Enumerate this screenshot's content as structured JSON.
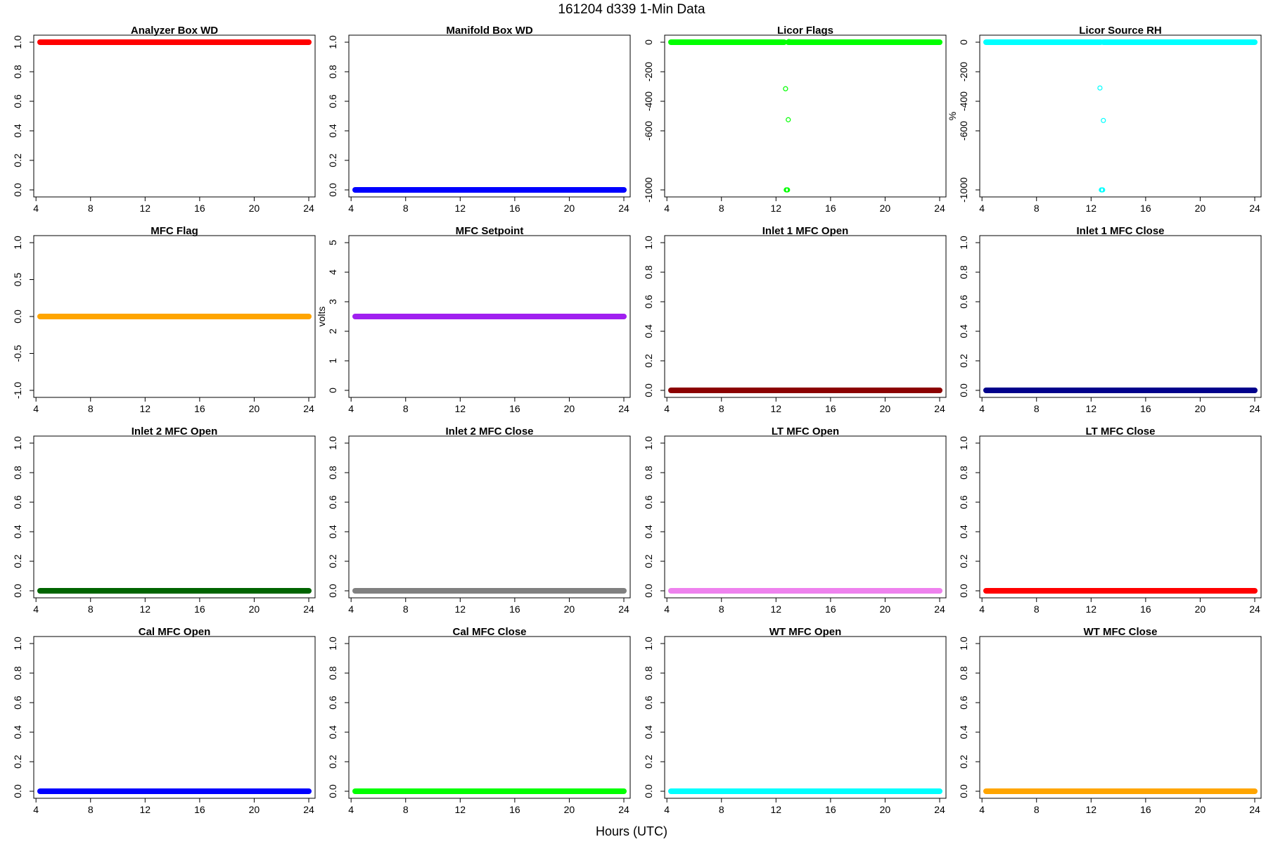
{
  "figure": {
    "title": "161204   d339   1-Min Data",
    "xlabel": "Hours (UTC)"
  },
  "chart_data": [
    {
      "type": "scatter",
      "title": "Analyzer Box WD",
      "ylabel": "",
      "color": "#ff0000",
      "xlim": [
        4.3,
        24
      ],
      "ylim": [
        0,
        1
      ],
      "xticks": [
        4,
        8,
        12,
        16,
        20,
        24
      ],
      "yticks": [
        0.0,
        0.2,
        0.4,
        0.6,
        0.8,
        1.0
      ],
      "series": [
        {
          "x": [
            4.3,
            24
          ],
          "y": [
            1,
            1
          ],
          "style": "line"
        }
      ],
      "points": []
    },
    {
      "type": "scatter",
      "title": "Manifold Box WD",
      "ylabel": "",
      "color": "#0000ff",
      "xlim": [
        4.3,
        24
      ],
      "ylim": [
        0,
        1
      ],
      "xticks": [
        4,
        8,
        12,
        16,
        20,
        24
      ],
      "yticks": [
        0.0,
        0.2,
        0.4,
        0.6,
        0.8,
        1.0
      ],
      "series": [
        {
          "x": [
            4.3,
            24
          ],
          "y": [
            0,
            0
          ],
          "style": "line"
        }
      ],
      "points": []
    },
    {
      "type": "scatter",
      "title": "Licor Flags",
      "ylabel": "",
      "color": "#00ff00",
      "xlim": [
        4.3,
        24
      ],
      "ylim": [
        -1000,
        0
      ],
      "xticks": [
        4,
        8,
        12,
        16,
        20,
        24
      ],
      "yticks": [
        0,
        -200,
        -400,
        -600,
        -1000
      ],
      "series": [
        {
          "x": [
            4.3,
            12.6
          ],
          "y": [
            0,
            0
          ],
          "style": "line"
        },
        {
          "x": [
            12.9,
            24
          ],
          "y": [
            0,
            0
          ],
          "style": "line"
        }
      ],
      "points": [
        {
          "x": 12.95,
          "y": 5
        },
        {
          "x": 12.7,
          "y": -315
        },
        {
          "x": 12.9,
          "y": -525
        },
        {
          "x": 12.75,
          "y": -1000
        },
        {
          "x": 12.8,
          "y": -1000
        },
        {
          "x": 12.85,
          "y": -1000
        }
      ]
    },
    {
      "type": "scatter",
      "title": "Licor Source RH",
      "ylabel": "%",
      "color": "#00ffff",
      "xlim": [
        4.3,
        24
      ],
      "ylim": [
        -1000,
        0
      ],
      "xticks": [
        4,
        8,
        12,
        16,
        20,
        24
      ],
      "yticks": [
        0,
        -200,
        -400,
        -600,
        -1000
      ],
      "series": [
        {
          "x": [
            4.3,
            12.7
          ],
          "y": [
            0,
            0
          ],
          "style": "line"
        },
        {
          "x": [
            12.9,
            24
          ],
          "y": [
            0,
            0
          ],
          "style": "line"
        }
      ],
      "points": [
        {
          "x": 12.65,
          "y": -310
        },
        {
          "x": 12.9,
          "y": -530
        },
        {
          "x": 12.75,
          "y": -1000
        },
        {
          "x": 12.8,
          "y": -1000
        },
        {
          "x": 12.85,
          "y": -1000
        }
      ]
    },
    {
      "type": "scatter",
      "title": "MFC Flag",
      "ylabel": "",
      "color": "#ffa500",
      "xlim": [
        4.3,
        24
      ],
      "ylim": [
        -1,
        1
      ],
      "xticks": [
        4,
        8,
        12,
        16,
        20,
        24
      ],
      "yticks": [
        -1.0,
        -0.5,
        0.0,
        0.5,
        1.0
      ],
      "series": [
        {
          "x": [
            4.3,
            24
          ],
          "y": [
            0,
            0
          ],
          "style": "line"
        }
      ],
      "points": []
    },
    {
      "type": "scatter",
      "title": "MFC Setpoint",
      "ylabel": "volts",
      "color": "#a020f0",
      "xlim": [
        4.3,
        24
      ],
      "ylim": [
        0,
        5
      ],
      "xticks": [
        4,
        8,
        12,
        16,
        20,
        24
      ],
      "yticks": [
        0,
        1,
        2,
        3,
        4,
        5
      ],
      "series": [
        {
          "x": [
            4.3,
            24
          ],
          "y": [
            2.5,
            2.5
          ],
          "style": "line"
        }
      ],
      "points": []
    },
    {
      "type": "scatter",
      "title": "Inlet 1 MFC Open",
      "ylabel": "",
      "color": "#8b0000",
      "xlim": [
        4.3,
        24
      ],
      "ylim": [
        0,
        1
      ],
      "xticks": [
        4,
        8,
        12,
        16,
        20,
        24
      ],
      "yticks": [
        0.0,
        0.2,
        0.4,
        0.6,
        0.8,
        1.0
      ],
      "series": [
        {
          "x": [
            4.3,
            24
          ],
          "y": [
            0,
            0
          ],
          "style": "line"
        }
      ],
      "points": []
    },
    {
      "type": "scatter",
      "title": "Inlet 1 MFC Close",
      "ylabel": "",
      "color": "#00008b",
      "xlim": [
        4.3,
        24
      ],
      "ylim": [
        0,
        1
      ],
      "xticks": [
        4,
        8,
        12,
        16,
        20,
        24
      ],
      "yticks": [
        0.0,
        0.2,
        0.4,
        0.6,
        0.8,
        1.0
      ],
      "series": [
        {
          "x": [
            4.3,
            24
          ],
          "y": [
            0,
            0
          ],
          "style": "line"
        }
      ],
      "points": []
    },
    {
      "type": "scatter",
      "title": "Inlet 2 MFC Open",
      "ylabel": "",
      "color": "#006400",
      "xlim": [
        4.3,
        24
      ],
      "ylim": [
        0,
        1
      ],
      "xticks": [
        4,
        8,
        12,
        16,
        20,
        24
      ],
      "yticks": [
        0.0,
        0.2,
        0.4,
        0.6,
        0.8,
        1.0
      ],
      "series": [
        {
          "x": [
            4.3,
            24
          ],
          "y": [
            0,
            0
          ],
          "style": "line"
        }
      ],
      "points": []
    },
    {
      "type": "scatter",
      "title": "Inlet 2 MFC Close",
      "ylabel": "",
      "color": "#808080",
      "xlim": [
        4.3,
        24
      ],
      "ylim": [
        0,
        1
      ],
      "xticks": [
        4,
        8,
        12,
        16,
        20,
        24
      ],
      "yticks": [
        0.0,
        0.2,
        0.4,
        0.6,
        0.8,
        1.0
      ],
      "series": [
        {
          "x": [
            4.3,
            24
          ],
          "y": [
            0,
            0
          ],
          "style": "line"
        }
      ],
      "points": []
    },
    {
      "type": "scatter",
      "title": "LT MFC Open",
      "ylabel": "",
      "color": "#ee82ee",
      "xlim": [
        4.3,
        24
      ],
      "ylim": [
        0,
        1
      ],
      "xticks": [
        4,
        8,
        12,
        16,
        20,
        24
      ],
      "yticks": [
        0.0,
        0.2,
        0.4,
        0.6,
        0.8,
        1.0
      ],
      "series": [
        {
          "x": [
            4.3,
            24
          ],
          "y": [
            0,
            0
          ],
          "style": "line"
        }
      ],
      "points": []
    },
    {
      "type": "scatter",
      "title": "LT MFC Close",
      "ylabel": "",
      "color": "#ff0000",
      "xlim": [
        4.3,
        24
      ],
      "ylim": [
        0,
        1
      ],
      "xticks": [
        4,
        8,
        12,
        16,
        20,
        24
      ],
      "yticks": [
        0.0,
        0.2,
        0.4,
        0.6,
        0.8,
        1.0
      ],
      "series": [
        {
          "x": [
            4.3,
            24
          ],
          "y": [
            0,
            0
          ],
          "style": "line"
        }
      ],
      "points": []
    },
    {
      "type": "scatter",
      "title": "Cal MFC Open",
      "ylabel": "",
      "color": "#0000ff",
      "xlim": [
        4.3,
        24
      ],
      "ylim": [
        0,
        1
      ],
      "xticks": [
        4,
        8,
        12,
        16,
        20,
        24
      ],
      "yticks": [
        0.0,
        0.2,
        0.4,
        0.6,
        0.8,
        1.0
      ],
      "series": [
        {
          "x": [
            4.3,
            24
          ],
          "y": [
            0,
            0
          ],
          "style": "line"
        }
      ],
      "points": []
    },
    {
      "type": "scatter",
      "title": "Cal MFC Close",
      "ylabel": "",
      "color": "#00ff00",
      "xlim": [
        4.3,
        24
      ],
      "ylim": [
        0,
        1
      ],
      "xticks": [
        4,
        8,
        12,
        16,
        20,
        24
      ],
      "yticks": [
        0.0,
        0.2,
        0.4,
        0.6,
        0.8,
        1.0
      ],
      "series": [
        {
          "x": [
            4.3,
            24
          ],
          "y": [
            0,
            0
          ],
          "style": "line"
        }
      ],
      "points": []
    },
    {
      "type": "scatter",
      "title": "WT MFC Open",
      "ylabel": "",
      "color": "#00ffff",
      "xlim": [
        4.3,
        24
      ],
      "ylim": [
        0,
        1
      ],
      "xticks": [
        4,
        8,
        12,
        16,
        20,
        24
      ],
      "yticks": [
        0.0,
        0.2,
        0.4,
        0.6,
        0.8,
        1.0
      ],
      "series": [
        {
          "x": [
            4.3,
            24
          ],
          "y": [
            0,
            0
          ],
          "style": "line"
        }
      ],
      "points": []
    },
    {
      "type": "scatter",
      "title": "WT MFC Close",
      "ylabel": "",
      "color": "#ffa500",
      "xlim": [
        4.3,
        24
      ],
      "ylim": [
        0,
        1
      ],
      "xticks": [
        4,
        8,
        12,
        16,
        20,
        24
      ],
      "yticks": [
        0.0,
        0.2,
        0.4,
        0.6,
        0.8,
        1.0
      ],
      "series": [
        {
          "x": [
            4.3,
            24
          ],
          "y": [
            0,
            0
          ],
          "style": "line"
        }
      ],
      "points": []
    }
  ]
}
